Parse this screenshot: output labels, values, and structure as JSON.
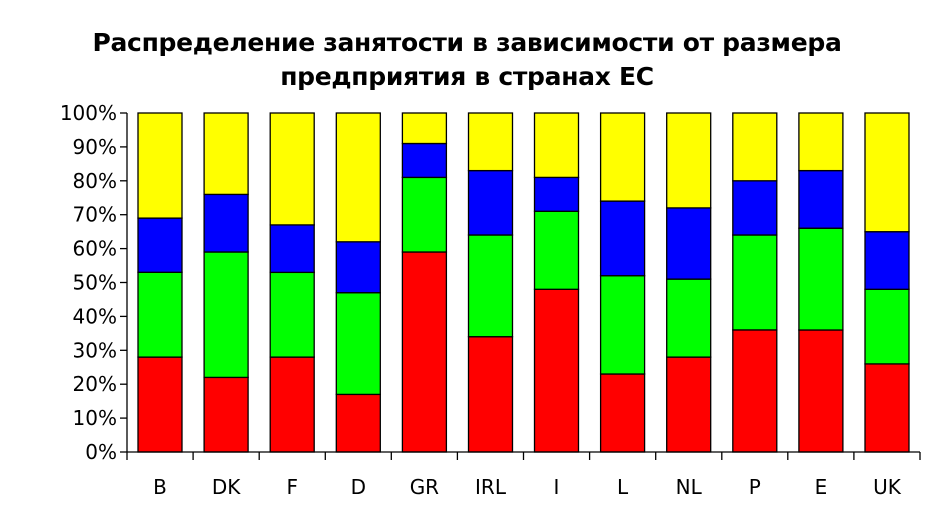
{
  "chart_data": {
    "type": "bar",
    "stacked": true,
    "title": [
      "Распределение занятости в зависимости от размера",
      "предприятия в странах ЕС"
    ],
    "xlabel": "",
    "ylabel": "",
    "ylim": [
      0,
      100
    ],
    "y_ticks": [
      "0%",
      "10%",
      "20%",
      "30%",
      "40%",
      "50%",
      "60%",
      "70%",
      "80%",
      "90%",
      "100%"
    ],
    "grid": false,
    "categories": [
      "B",
      "DK",
      "F",
      "D",
      "GR",
      "IRL",
      "I",
      "L",
      "NL",
      "P",
      "E",
      "UK"
    ],
    "series": [
      {
        "color": "#ff0000",
        "values": [
          28,
          22,
          28,
          17,
          59,
          34,
          48,
          23,
          28,
          36,
          36,
          26
        ]
      },
      {
        "color": "#00ff00",
        "values": [
          25,
          37,
          25,
          30,
          22,
          30,
          23,
          29,
          23,
          28,
          30,
          22
        ]
      },
      {
        "color": "#0000ff",
        "values": [
          16,
          17,
          14,
          15,
          10,
          19,
          10,
          22,
          21,
          16,
          17,
          17
        ]
      },
      {
        "color": "#ffff00",
        "values": [
          31,
          24,
          33,
          38,
          9,
          17,
          19,
          26,
          28,
          20,
          17,
          35
        ]
      }
    ]
  }
}
